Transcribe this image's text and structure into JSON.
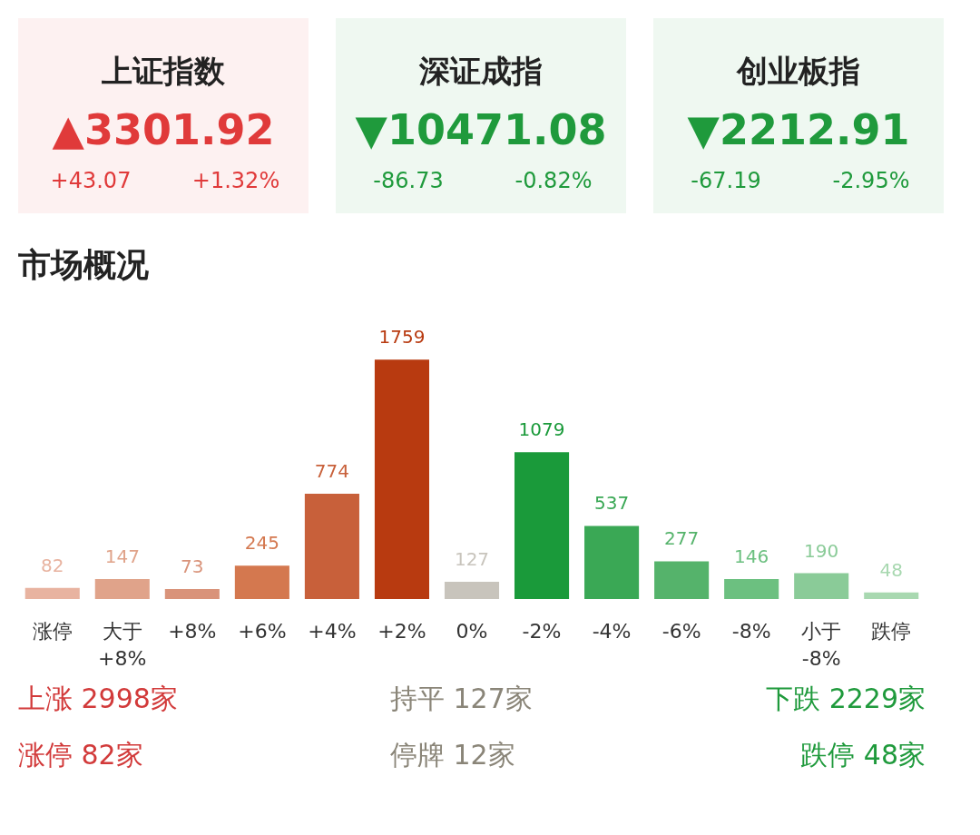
{
  "chart_data": [
    {
      "type": "other",
      "title": "上证指数",
      "color": "#e03a3a",
      "annotations": [
        "▲3301.92",
        "+43.07",
        "+1.32%"
      ]
    },
    {
      "type": "other",
      "title": "深证成指",
      "color": "#1f9a3c",
      "annotations": [
        "▼10471.08",
        "-86.73",
        "-0.82%"
      ]
    },
    {
      "type": "other",
      "title": "创业板指",
      "color": "#1f9a3c",
      "annotations": [
        "▼2212.91",
        "-67.19",
        "-2.95%"
      ]
    },
    {
      "type": "bar",
      "title": "市场概况",
      "data_labels": true,
      "categories": [
        "涨停",
        "大于 +8%",
        "+8%",
        "+6%",
        "+4%",
        "+2%",
        "0%",
        "-2%",
        "-4%",
        "-6%",
        "-8%",
        "小于 -8%",
        "跌停"
      ],
      "values": [
        82,
        147,
        73,
        245,
        774,
        1759,
        127,
        1079,
        537,
        277,
        146,
        190,
        48
      ],
      "colors": [
        "#e8b3a0",
        "#e0a38a",
        "#d9937a",
        "#d4784f",
        "#c8603a",
        "#b83a10",
        "#c8c4bc",
        "#1a9a3a",
        "#3aa855",
        "#55b36b",
        "#6cc080",
        "#8acb98",
        "#a8d8b0"
      ],
      "annotations": [
        "上涨 2998家",
        "持平 127家",
        "下跌 2229家",
        "涨停 82家",
        "停牌 12家",
        "跌停 48家"
      ]
    }
  ]
}
